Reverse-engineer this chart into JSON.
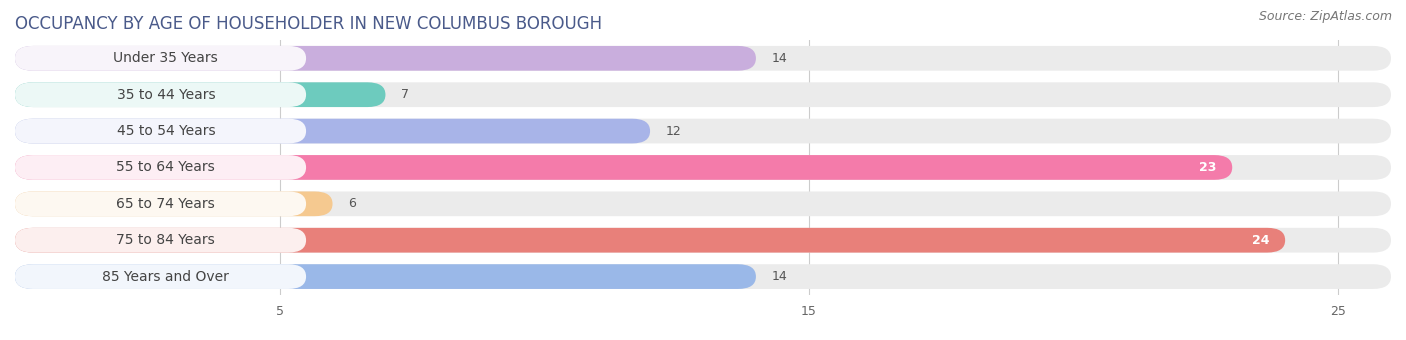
{
  "title": "OCCUPANCY BY AGE OF HOUSEHOLDER IN NEW COLUMBUS BOROUGH",
  "source": "Source: ZipAtlas.com",
  "categories": [
    "Under 35 Years",
    "35 to 44 Years",
    "45 to 54 Years",
    "55 to 64 Years",
    "65 to 74 Years",
    "75 to 84 Years",
    "85 Years and Over"
  ],
  "values": [
    14,
    7,
    12,
    23,
    6,
    24,
    14
  ],
  "bar_colors": [
    "#c9aedd",
    "#6dcbbe",
    "#a8b4e8",
    "#f47baa",
    "#f5c990",
    "#e8807a",
    "#9ab8e8"
  ],
  "bar_bg_color": "#ebebeb",
  "xlim_max": 26,
  "xticks": [
    5,
    15,
    25
  ],
  "title_fontsize": 12,
  "source_fontsize": 9,
  "label_fontsize": 10,
  "value_fontsize": 9,
  "background_color": "#ffffff",
  "bar_height": 0.68
}
